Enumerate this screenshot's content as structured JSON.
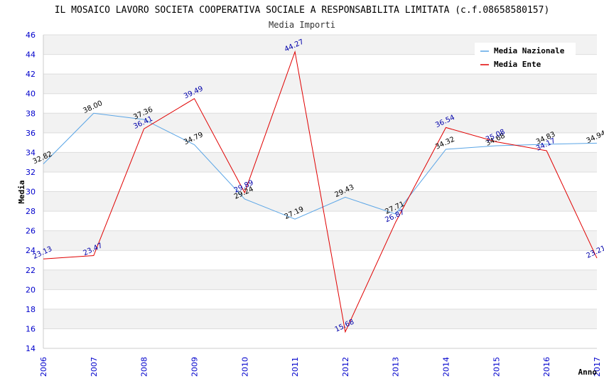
{
  "chart_data": {
    "type": "line",
    "title": "IL MOSAICO LAVORO SOCIETA COOPERATIVA SOCIALE A RESPONSABILITA LIMITATA (c.f.08658580157)",
    "subtitle": "Media Importi",
    "xlabel": "Anno",
    "ylabel": "Media",
    "ylim": [
      14,
      46
    ],
    "yticks": [
      "14",
      "16",
      "18",
      "20",
      "22",
      "24",
      "26",
      "28",
      "30",
      "32",
      "34",
      "36",
      "38",
      "40",
      "42",
      "44",
      "46"
    ],
    "x": [
      "2006",
      "2007",
      "2008",
      "2009",
      "2010",
      "2011",
      "2012",
      "2013",
      "2014",
      "2015",
      "2016",
      "2017"
    ],
    "legend_position": "top-right",
    "series": [
      {
        "name": "Media Nazionale",
        "color": "#5aa5e6",
        "label_color": "#000000",
        "values": [
          32.82,
          38.0,
          37.36,
          34.79,
          29.24,
          27.19,
          29.43,
          27.71,
          34.32,
          34.68,
          34.83,
          34.94
        ],
        "labels": [
          "32.82",
          "38.00",
          "37.36",
          "34.79",
          "29.24",
          "27.19",
          "29.43",
          "27.71",
          "34.32",
          "34.68",
          "34.83",
          "34.94"
        ]
      },
      {
        "name": "Media Ente",
        "color": "#e00000",
        "label_color": "#0000aa",
        "values": [
          23.13,
          23.47,
          36.41,
          39.49,
          29.89,
          44.27,
          15.68,
          26.87,
          36.54,
          35.08,
          34.17,
          23.21
        ],
        "labels": [
          "23.13",
          "23.47",
          "36.41",
          "39.49",
          "29.89",
          "44.27",
          "15.68",
          "26.87",
          "36.54",
          "35.08",
          "34.17",
          "23.21"
        ]
      }
    ]
  }
}
